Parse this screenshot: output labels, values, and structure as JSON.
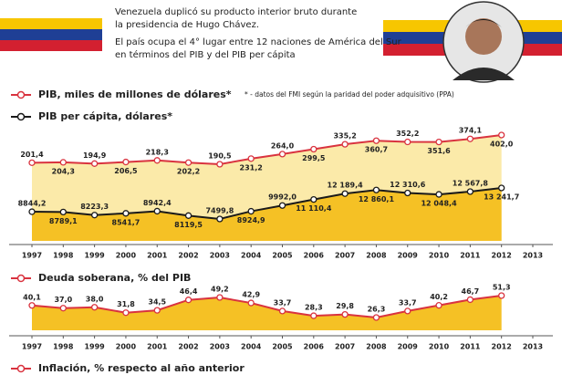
{
  "header": {
    "lead": [
      "Venezuela duplicó su producto interior bruto durante",
      "la presidencia de Hugo Chávez."
    ],
    "detail": [
      "El país ocupa el 4° lugar entre 12 naciones de América del Sur",
      "en términos del PIB y del PIB per cápita"
    ]
  },
  "chart_data": [
    {
      "type": "line",
      "note": "* - datos del FMI según la paridad del poder adquisitivo (PPA)",
      "x": [
        1997,
        1998,
        1999,
        2000,
        2001,
        2002,
        2003,
        2004,
        2005,
        2006,
        2007,
        2008,
        2009,
        2010,
        2011,
        2012
      ],
      "xticks": [
        1997,
        1998,
        1999,
        2000,
        2001,
        2002,
        2003,
        2004,
        2005,
        2006,
        2007,
        2008,
        2009,
        2010,
        2011,
        2012,
        2013
      ],
      "series": [
        {
          "name": "PIB, miles de millones de dólares*",
          "color": "#d9333f",
          "fill_color": "#fbeaa9",
          "values": [
            201.4,
            204.3,
            194.9,
            206.5,
            218.3,
            202.2,
            190.5,
            231.2,
            264.0,
            299.5,
            335.2,
            360.7,
            352.2,
            351.6,
            374.1,
            402.0
          ],
          "value_labels": [
            "201,4",
            "204,3",
            "194,9",
            "206,5",
            "218,3",
            "202,2",
            "190,5",
            "231,2",
            "264,0",
            "299,5",
            "335,2",
            "360,7",
            "352,2",
            "351,6",
            "374,1",
            "402,0"
          ]
        },
        {
          "name": "PIB per cápita, dólares*",
          "color": "#1a1a1a",
          "fill_color": "#f5c125",
          "values": [
            8844.2,
            8789.1,
            8223.3,
            8541.7,
            8942.4,
            8119.5,
            7499.8,
            8924.9,
            9992.0,
            11110.4,
            12189.4,
            12860.1,
            12310.6,
            12048.4,
            12567.8,
            13241.7
          ],
          "value_labels": [
            "8844,2",
            "8789,1",
            "8223,3",
            "8541,7",
            "8942,4",
            "8119,5",
            "7499,8",
            "8924,9",
            "9992,0",
            "11 110,4",
            "12 189,4",
            "12 860,1",
            "12 310,6",
            "12 048,4",
            "12 567,8",
            "13 241,7"
          ]
        }
      ]
    },
    {
      "type": "line",
      "title": "Deuda soberana, % del PIB",
      "color": "#d9333f",
      "fill_color": "#f5c125",
      "x": [
        1997,
        1998,
        1999,
        2000,
        2001,
        2002,
        2003,
        2004,
        2005,
        2006,
        2007,
        2008,
        2009,
        2010,
        2011,
        2012
      ],
      "values": [
        40.1,
        37.0,
        38.0,
        31.8,
        34.5,
        46.4,
        49.2,
        42.9,
        33.7,
        28.3,
        29.8,
        26.3,
        33.7,
        40.2,
        46.7,
        51.3
      ],
      "value_labels": [
        "40,1",
        "37,0",
        "38,0",
        "31,8",
        "34,5",
        "46,4",
        "49,2",
        "42,9",
        "33,7",
        "28,3",
        "29,8",
        "26,3",
        "33,7",
        "40,2",
        "46,7",
        "51,3"
      ],
      "xticks": [
        1997,
        1998,
        1999,
        2000,
        2001,
        2002,
        2003,
        2004,
        2005,
        2006,
        2007,
        2008,
        2009,
        2010,
        2011,
        2012,
        2013
      ]
    },
    {
      "type": "line",
      "title": "Inflación, % respecto al año anterior",
      "color": "#d9333f"
    }
  ]
}
